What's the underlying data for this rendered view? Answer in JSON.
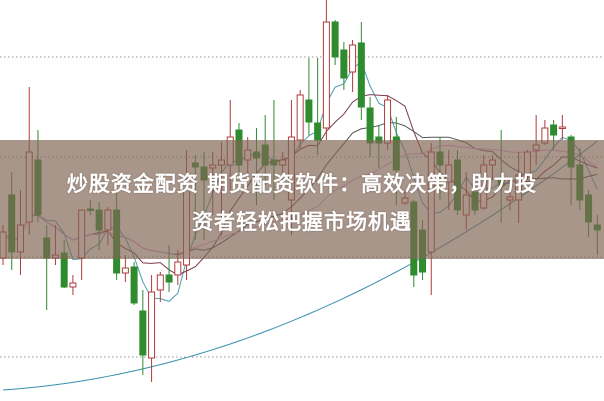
{
  "headline": {
    "line1": "炒股资金配资 期货配资软件：高效决策，助力投",
    "line2": "资者轻松把握市场机遇"
  },
  "chart_data": {
    "type": "candlestick",
    "title": "",
    "grid": "horizontal dotted",
    "up_color": "#b03a3a",
    "down_color": "#2e8b2e",
    "ma_colors": [
      "#4a9eb0",
      "#7a3a4a",
      "#555555",
      "#e0a0e0"
    ],
    "ma_periods": [
      5,
      10,
      20,
      30
    ],
    "candles_ohlc": [
      [
        142,
        175,
        135,
        168
      ],
      [
        205,
        228,
        130,
        148
      ],
      [
        148,
        210,
        125,
        175
      ],
      [
        178,
        313,
        165,
        248
      ],
      [
        240,
        270,
        178,
        185
      ],
      [
        162,
        175,
        90,
        142
      ],
      [
        142,
        175,
        135,
        145
      ],
      [
        147,
        160,
        112,
        113
      ],
      [
        113,
        125,
        105,
        117
      ],
      [
        142,
        190,
        120,
        190
      ],
      [
        191,
        200,
        185,
        190
      ],
      [
        190,
        198,
        150,
        170
      ],
      [
        170,
        193,
        155,
        190
      ],
      [
        190,
        207,
        120,
        127
      ],
      [
        127,
        145,
        118,
        132
      ],
      [
        133,
        138,
        95,
        97
      ],
      [
        89,
        110,
        25,
        45
      ],
      [
        42,
        125,
        18,
        108
      ],
      [
        110,
        128,
        98,
        125
      ],
      [
        125,
        155,
        108,
        118
      ],
      [
        125,
        150,
        115,
        138
      ],
      [
        135,
        250,
        120,
        210
      ],
      [
        237,
        245,
        160,
        233
      ],
      [
        233,
        248,
        160,
        220
      ],
      [
        232,
        248,
        185,
        235
      ],
      [
        235,
        258,
        165,
        240
      ],
      [
        235,
        300,
        210,
        263
      ],
      [
        270,
        277,
        228,
        235
      ],
      [
        240,
        263,
        225,
        250
      ],
      [
        248,
        272,
        195,
        242
      ],
      [
        255,
        285,
        215,
        235
      ],
      [
        240,
        300,
        200,
        235
      ],
      [
        235,
        248,
        225,
        240
      ],
      [
        200,
        300,
        165,
        263
      ],
      [
        260,
        310,
        250,
        305
      ],
      [
        300,
        342,
        265,
        278
      ],
      [
        277,
        342,
        245,
        260
      ],
      [
        272,
        400,
        260,
        378
      ],
      [
        378,
        380,
        335,
        343
      ],
      [
        350,
        358,
        310,
        322
      ],
      [
        328,
        360,
        308,
        355
      ],
      [
        357,
        378,
        280,
        293
      ],
      [
        292,
        303,
        243,
        257
      ],
      [
        263,
        275,
        232,
        257
      ],
      [
        257,
        305,
        250,
        300
      ],
      [
        263,
        283,
        195,
        230
      ],
      [
        197,
        210,
        195,
        202
      ],
      [
        198,
        200,
        113,
        125
      ],
      [
        170,
        180,
        120,
        128
      ],
      [
        148,
        257,
        105,
        248
      ],
      [
        248,
        263,
        200,
        235
      ],
      [
        218,
        250,
        190,
        235
      ],
      [
        240,
        250,
        185,
        190
      ],
      [
        185,
        228,
        170,
        205
      ],
      [
        208,
        220,
        185,
        190
      ],
      [
        192,
        245,
        190,
        235
      ],
      [
        235,
        245,
        220,
        240
      ],
      [
        220,
        270,
        177,
        215
      ],
      [
        200,
        210,
        190,
        203
      ],
      [
        200,
        248,
        177,
        225
      ],
      [
        225,
        250,
        220,
        248
      ],
      [
        250,
        285,
        235,
        255
      ],
      [
        257,
        280,
        255,
        272
      ],
      [
        275,
        280,
        250,
        265
      ],
      [
        272,
        285,
        260,
        273
      ],
      [
        263,
        265,
        195,
        233
      ],
      [
        235,
        252,
        190,
        200
      ],
      [
        205,
        210,
        163,
        178
      ],
      [
        175,
        185,
        145,
        170
      ]
    ]
  }
}
